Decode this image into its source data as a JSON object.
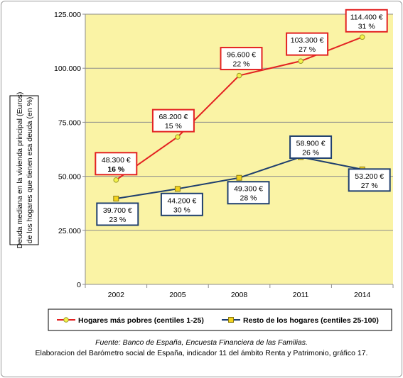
{
  "chart_data": {
    "type": "line",
    "ylabel_line1": "Deuda mediana en la vivienda principal (Euros)",
    "ylabel_line2": "de los hogares que tienen esa deuda (en %)",
    "categories": [
      "2002",
      "2005",
      "2008",
      "2011",
      "2014"
    ],
    "yticks": [
      "0",
      "25.000",
      "50.000",
      "75.000",
      "100.000",
      "125.000"
    ],
    "ylim": [
      0,
      125000
    ],
    "grid": true,
    "plot_background": "#faf3a5",
    "series": [
      {
        "name": "Hogares más pobres (centiles 1-25)",
        "color": "#e32222",
        "marker": "circle",
        "values": [
          48300,
          68200,
          96600,
          103300,
          114400
        ],
        "labels": [
          {
            "amount": "48.300 €",
            "pct": "16 %"
          },
          {
            "amount": "68.200 €",
            "pct": "15 %"
          },
          {
            "amount": "96.600 €",
            "pct": "22 %"
          },
          {
            "amount": "103.300 €",
            "pct": "27 %"
          },
          {
            "amount": "114.400 €",
            "pct": "31 %"
          }
        ]
      },
      {
        "name": "Resto de los hogares (centiles 25-100)",
        "color": "#1f3f6e",
        "marker": "square",
        "values": [
          39700,
          44200,
          49300,
          58900,
          53200
        ],
        "labels": [
          {
            "amount": "39.700 €",
            "pct": "23 %"
          },
          {
            "amount": "44.200 €",
            "pct": "30 %"
          },
          {
            "amount": "49.300 €",
            "pct": "28 %"
          },
          {
            "amount": "58.900 €",
            "pct": "26 %"
          },
          {
            "amount": "53.200 €",
            "pct": "27 %"
          }
        ]
      }
    ],
    "legend_position": "bottom"
  },
  "footer": {
    "source": "Fuente: Banco de España, Encuesta Financiera de las Familias.",
    "credit": "Elaboracion del Barómetro social de España, indicador  11 del ámbito Renta y Patrimonio, gráfico 17."
  }
}
